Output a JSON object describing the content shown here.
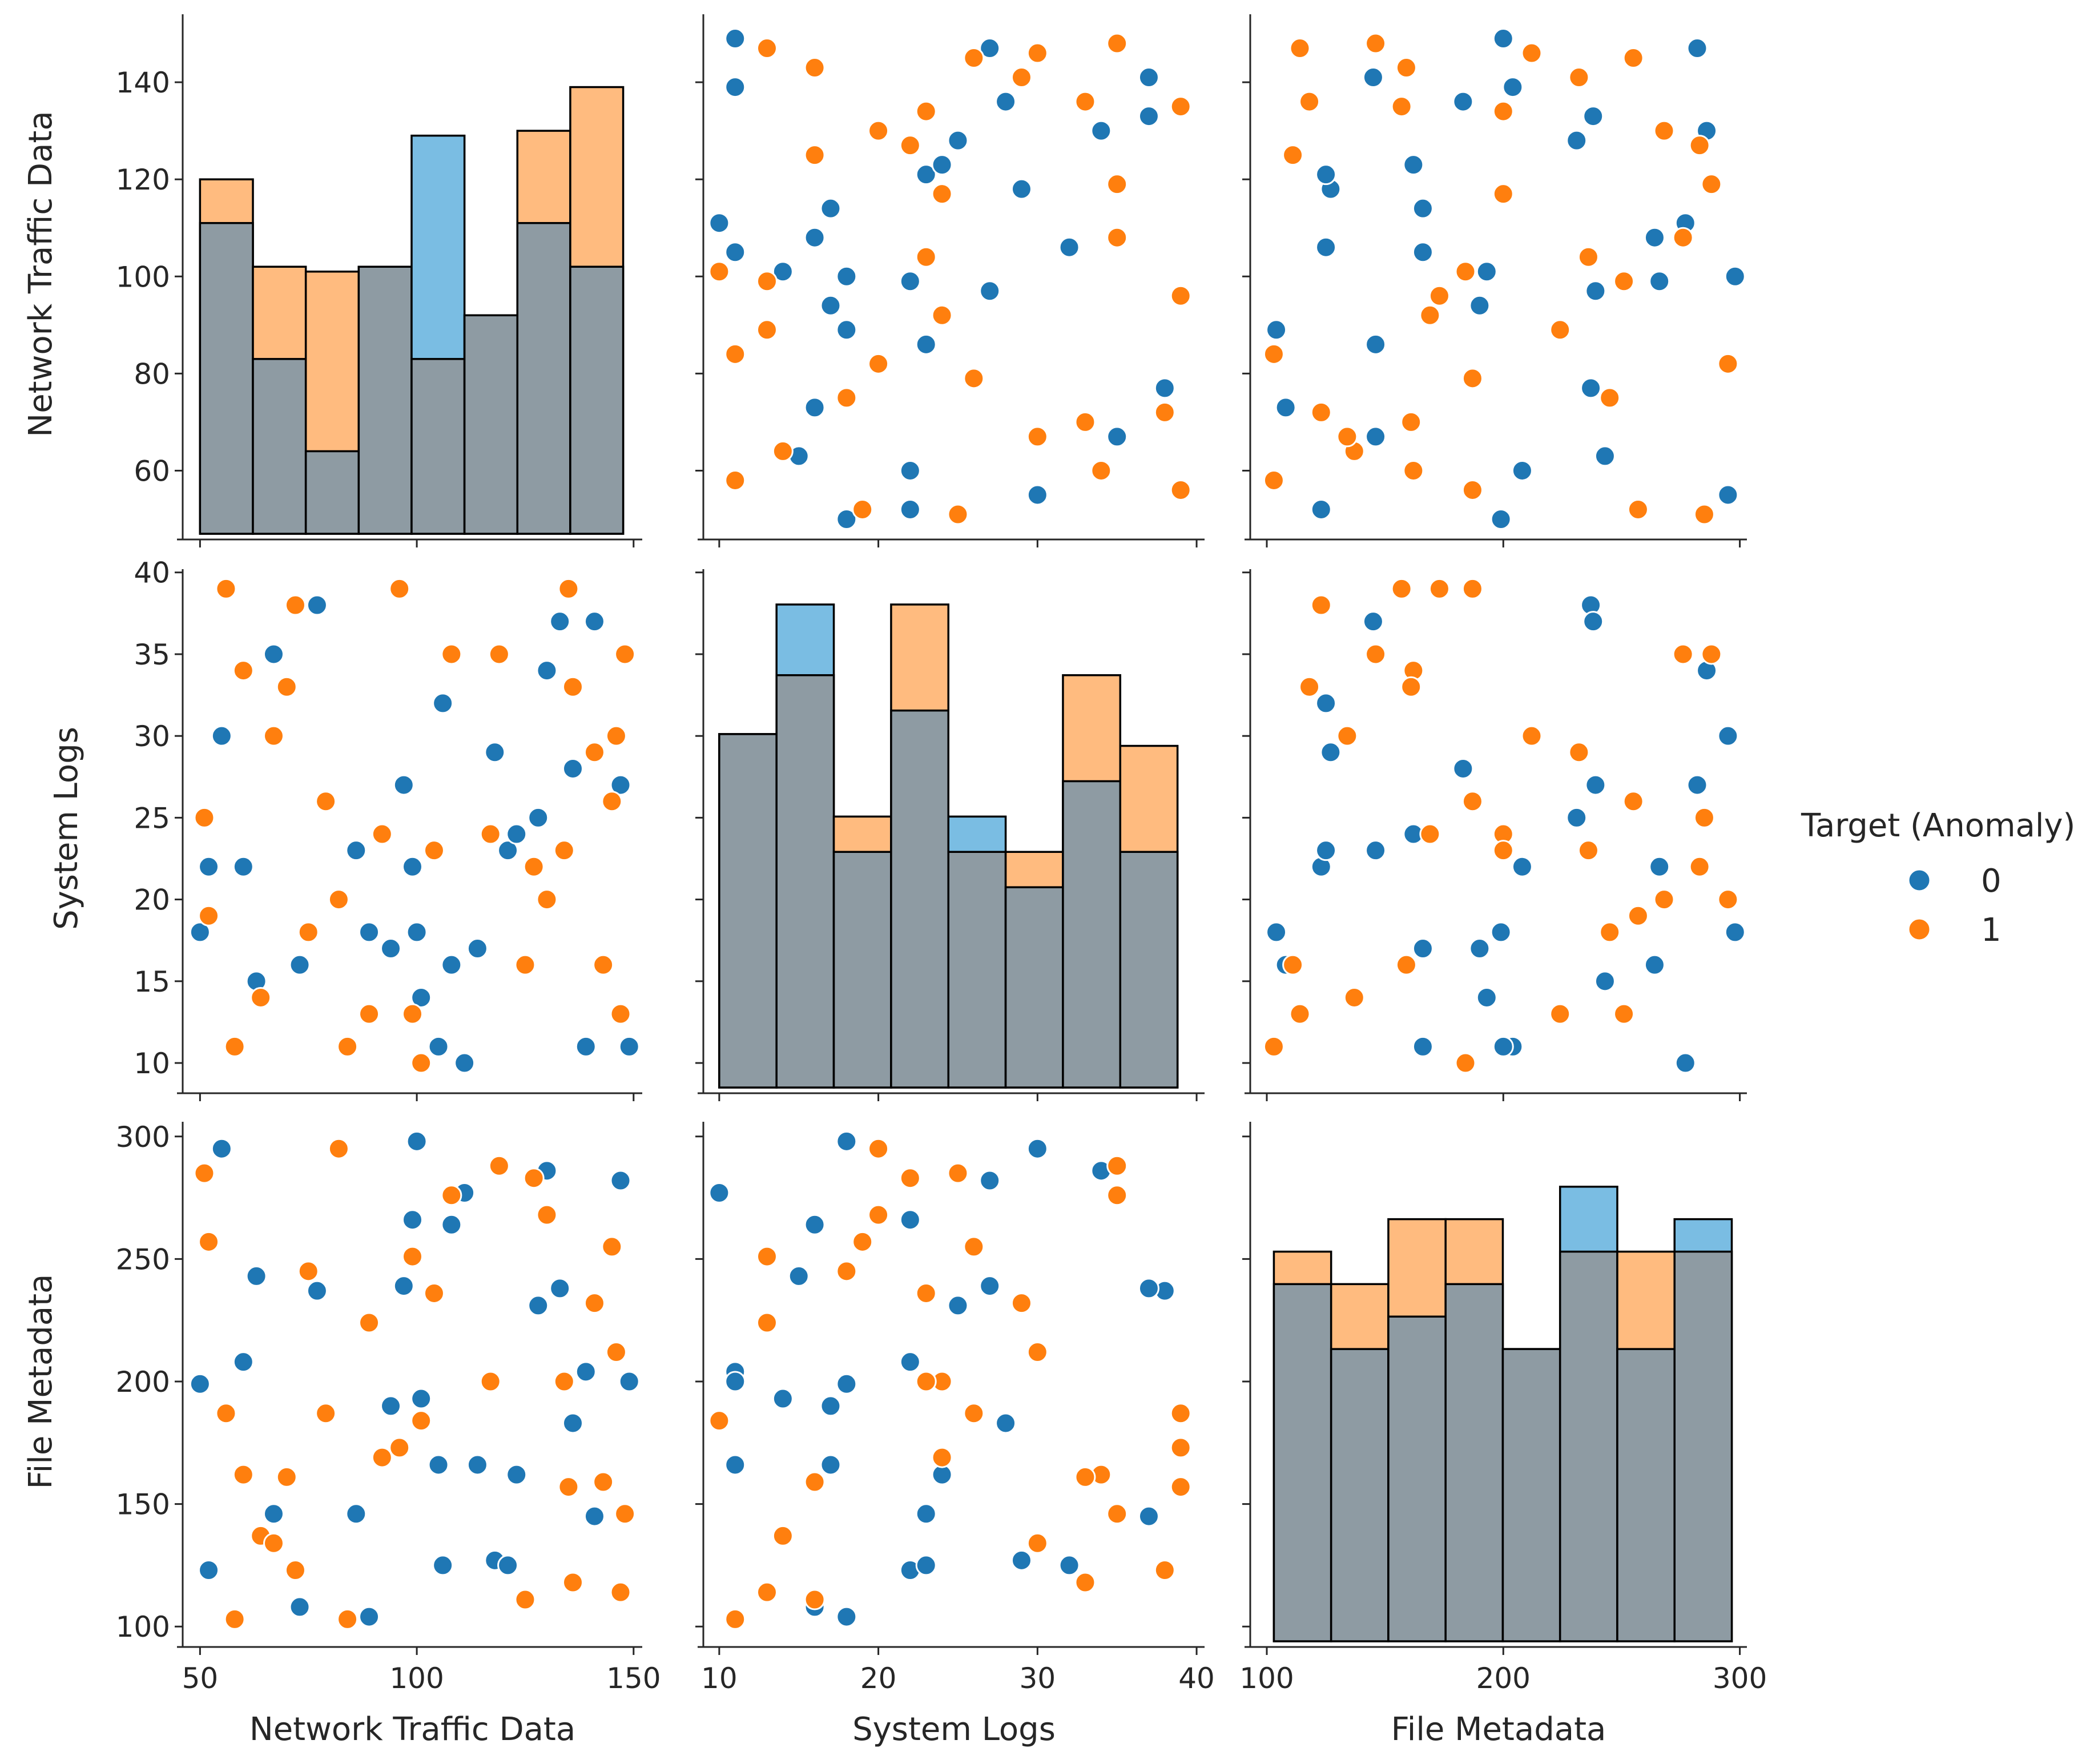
{
  "chart_data": {
    "type": "scatter",
    "kind": "pairplot",
    "variables": [
      "Network Traffic Data",
      "System Logs",
      "File Metadata"
    ],
    "hue": "Target (Anomaly)",
    "hue_levels": [
      "0",
      "1"
    ],
    "colors": {
      "0": "#1f77b4",
      "1": "#ff7f0e",
      "overlap": "#8e9ba3"
    },
    "legend": {
      "title": "Target (Anomaly)",
      "entries": [
        "0",
        "1"
      ],
      "placement": "right"
    },
    "axes": {
      "Network Traffic Data": {
        "label": "Network Traffic Data",
        "lim": [
          46,
          152
        ],
        "ticks": [
          50,
          100,
          150
        ],
        "ylim": [
          47,
          154
        ],
        "yticks": [
          60,
          80,
          100,
          120,
          140
        ]
      },
      "System Logs": {
        "label": "System Logs",
        "lim": [
          9,
          40.5
        ],
        "ticks": [
          10,
          20,
          30,
          40
        ],
        "ylim": [
          8.5,
          40.2
        ],
        "yticks": [
          10,
          15,
          20,
          25,
          30,
          35,
          40
        ]
      },
      "File Metadata": {
        "label": "File Metadata",
        "lim": [
          93,
          303
        ],
        "ticks": [
          100,
          200,
          300
        ],
        "ylim": [
          94,
          306
        ],
        "yticks": [
          100,
          150,
          200,
          250,
          300
        ]
      }
    },
    "histograms": [
      {
        "variable": "Network Traffic Data",
        "bin_edges": [
          50,
          62.2,
          74.4,
          86.6,
          98.8,
          111,
          123.2,
          135.4,
          147.6
        ],
        "class_0_count_scaled": [
          111,
          83,
          64,
          102,
          83,
          92,
          111,
          102
        ],
        "class_1_count_scaled": [
          9,
          19,
          37,
          0,
          0,
          0,
          19,
          37
        ],
        "class_0_excess": [
          0,
          0,
          0,
          0,
          46,
          0,
          0,
          0
        ]
      },
      {
        "variable": "System Logs",
        "bin_edges": [
          10,
          13.6,
          17.2,
          20.8,
          24.4,
          28,
          31.6,
          35.2,
          38.8
        ],
        "class_0_count": [
          3,
          3.5,
          2,
          3.2,
          2,
          1.7,
          2.6,
          2
        ],
        "class_1_count": [
          0,
          0,
          0.3,
          0.9,
          0,
          0.3,
          0.9,
          0.9
        ],
        "class_0_excess": [
          0,
          0.6,
          0,
          0,
          0.3,
          0,
          0,
          0
        ]
      },
      {
        "variable": "File Metadata",
        "bin_edges": [
          103,
          127.2,
          151.4,
          175.6,
          199.8,
          224,
          248.2,
          272.4,
          296.6
        ],
        "class_0_count": [
          11,
          9,
          10,
          11,
          9,
          12,
          9,
          12
        ],
        "class_1_count": [
          1,
          2,
          3,
          2,
          0,
          0,
          3,
          0
        ],
        "class_0_excess": [
          0,
          0,
          0,
          0,
          0,
          2,
          0,
          1
        ]
      }
    ],
    "points": [
      {
        "ntd": 52,
        "sl": 22,
        "fm": 123,
        "t": 0
      },
      {
        "ntd": 50,
        "sl": 18,
        "fm": 199,
        "t": 0
      },
      {
        "ntd": 55,
        "sl": 30,
        "fm": 295,
        "t": 0
      },
      {
        "ntd": 60,
        "sl": 22,
        "fm": 208,
        "t": 0
      },
      {
        "ntd": 63,
        "sl": 15,
        "fm": 243,
        "t": 0
      },
      {
        "ntd": 67,
        "sl": 35,
        "fm": 146,
        "t": 0
      },
      {
        "ntd": 73,
        "sl": 16,
        "fm": 108,
        "t": 0
      },
      {
        "ntd": 77,
        "sl": 38,
        "fm": 237,
        "t": 0
      },
      {
        "ntd": 86,
        "sl": 23,
        "fm": 146,
        "t": 0
      },
      {
        "ntd": 89,
        "sl": 18,
        "fm": 104,
        "t": 0
      },
      {
        "ntd": 94,
        "sl": 17,
        "fm": 190,
        "t": 0
      },
      {
        "ntd": 97,
        "sl": 27,
        "fm": 239,
        "t": 0
      },
      {
        "ntd": 99,
        "sl": 22,
        "fm": 266,
        "t": 0
      },
      {
        "ntd": 100,
        "sl": 18,
        "fm": 298,
        "t": 0
      },
      {
        "ntd": 101,
        "sl": 14,
        "fm": 193,
        "t": 0
      },
      {
        "ntd": 105,
        "sl": 11,
        "fm": 166,
        "t": 0
      },
      {
        "ntd": 106,
        "sl": 32,
        "fm": 125,
        "t": 0
      },
      {
        "ntd": 108,
        "sl": 16,
        "fm": 264,
        "t": 0
      },
      {
        "ntd": 111,
        "sl": 10,
        "fm": 277,
        "t": 0
      },
      {
        "ntd": 114,
        "sl": 17,
        "fm": 166,
        "t": 0
      },
      {
        "ntd": 118,
        "sl": 29,
        "fm": 127,
        "t": 0
      },
      {
        "ntd": 121,
        "sl": 23,
        "fm": 125,
        "t": 0
      },
      {
        "ntd": 123,
        "sl": 24,
        "fm": 162,
        "t": 0
      },
      {
        "ntd": 128,
        "sl": 25,
        "fm": 231,
        "t": 0
      },
      {
        "ntd": 130,
        "sl": 34,
        "fm": 286,
        "t": 0
      },
      {
        "ntd": 133,
        "sl": 37,
        "fm": 238,
        "t": 0
      },
      {
        "ntd": 136,
        "sl": 28,
        "fm": 183,
        "t": 0
      },
      {
        "ntd": 139,
        "sl": 11,
        "fm": 204,
        "t": 0
      },
      {
        "ntd": 141,
        "sl": 37,
        "fm": 145,
        "t": 0
      },
      {
        "ntd": 147,
        "sl": 27,
        "fm": 282,
        "t": 0
      },
      {
        "ntd": 149,
        "sl": 11,
        "fm": 200,
        "t": 0
      },
      {
        "ntd": 51,
        "sl": 25,
        "fm": 285,
        "t": 1
      },
      {
        "ntd": 52,
        "sl": 19,
        "fm": 257,
        "t": 1
      },
      {
        "ntd": 56,
        "sl": 39,
        "fm": 187,
        "t": 1
      },
      {
        "ntd": 58,
        "sl": 11,
        "fm": 103,
        "t": 1
      },
      {
        "ntd": 60,
        "sl": 34,
        "fm": 162,
        "t": 1
      },
      {
        "ntd": 64,
        "sl": 14,
        "fm": 137,
        "t": 1
      },
      {
        "ntd": 67,
        "sl": 30,
        "fm": 134,
        "t": 1
      },
      {
        "ntd": 70,
        "sl": 33,
        "fm": 161,
        "t": 1
      },
      {
        "ntd": 72,
        "sl": 38,
        "fm": 123,
        "t": 1
      },
      {
        "ntd": 75,
        "sl": 18,
        "fm": 245,
        "t": 1
      },
      {
        "ntd": 79,
        "sl": 26,
        "fm": 187,
        "t": 1
      },
      {
        "ntd": 82,
        "sl": 20,
        "fm": 295,
        "t": 1
      },
      {
        "ntd": 84,
        "sl": 11,
        "fm": 103,
        "t": 1
      },
      {
        "ntd": 89,
        "sl": 13,
        "fm": 224,
        "t": 1
      },
      {
        "ntd": 92,
        "sl": 24,
        "fm": 169,
        "t": 1
      },
      {
        "ntd": 96,
        "sl": 39,
        "fm": 173,
        "t": 1
      },
      {
        "ntd": 99,
        "sl": 13,
        "fm": 251,
        "t": 1
      },
      {
        "ntd": 101,
        "sl": 10,
        "fm": 184,
        "t": 1
      },
      {
        "ntd": 104,
        "sl": 23,
        "fm": 236,
        "t": 1
      },
      {
        "ntd": 108,
        "sl": 35,
        "fm": 276,
        "t": 1
      },
      {
        "ntd": 117,
        "sl": 24,
        "fm": 200,
        "t": 1
      },
      {
        "ntd": 119,
        "sl": 35,
        "fm": 288,
        "t": 1
      },
      {
        "ntd": 125,
        "sl": 16,
        "fm": 111,
        "t": 1
      },
      {
        "ntd": 127,
        "sl": 22,
        "fm": 283,
        "t": 1
      },
      {
        "ntd": 130,
        "sl": 20,
        "fm": 268,
        "t": 1
      },
      {
        "ntd": 134,
        "sl": 23,
        "fm": 200,
        "t": 1
      },
      {
        "ntd": 135,
        "sl": 39,
        "fm": 157,
        "t": 1
      },
      {
        "ntd": 136,
        "sl": 33,
        "fm": 118,
        "t": 1
      },
      {
        "ntd": 141,
        "sl": 29,
        "fm": 232,
        "t": 1
      },
      {
        "ntd": 143,
        "sl": 16,
        "fm": 159,
        "t": 1
      },
      {
        "ntd": 145,
        "sl": 26,
        "fm": 255,
        "t": 1
      },
      {
        "ntd": 146,
        "sl": 30,
        "fm": 212,
        "t": 1
      },
      {
        "ntd": 148,
        "sl": 35,
        "fm": 146,
        "t": 1
      },
      {
        "ntd": 147,
        "sl": 13,
        "fm": 114,
        "t": 1
      }
    ]
  }
}
